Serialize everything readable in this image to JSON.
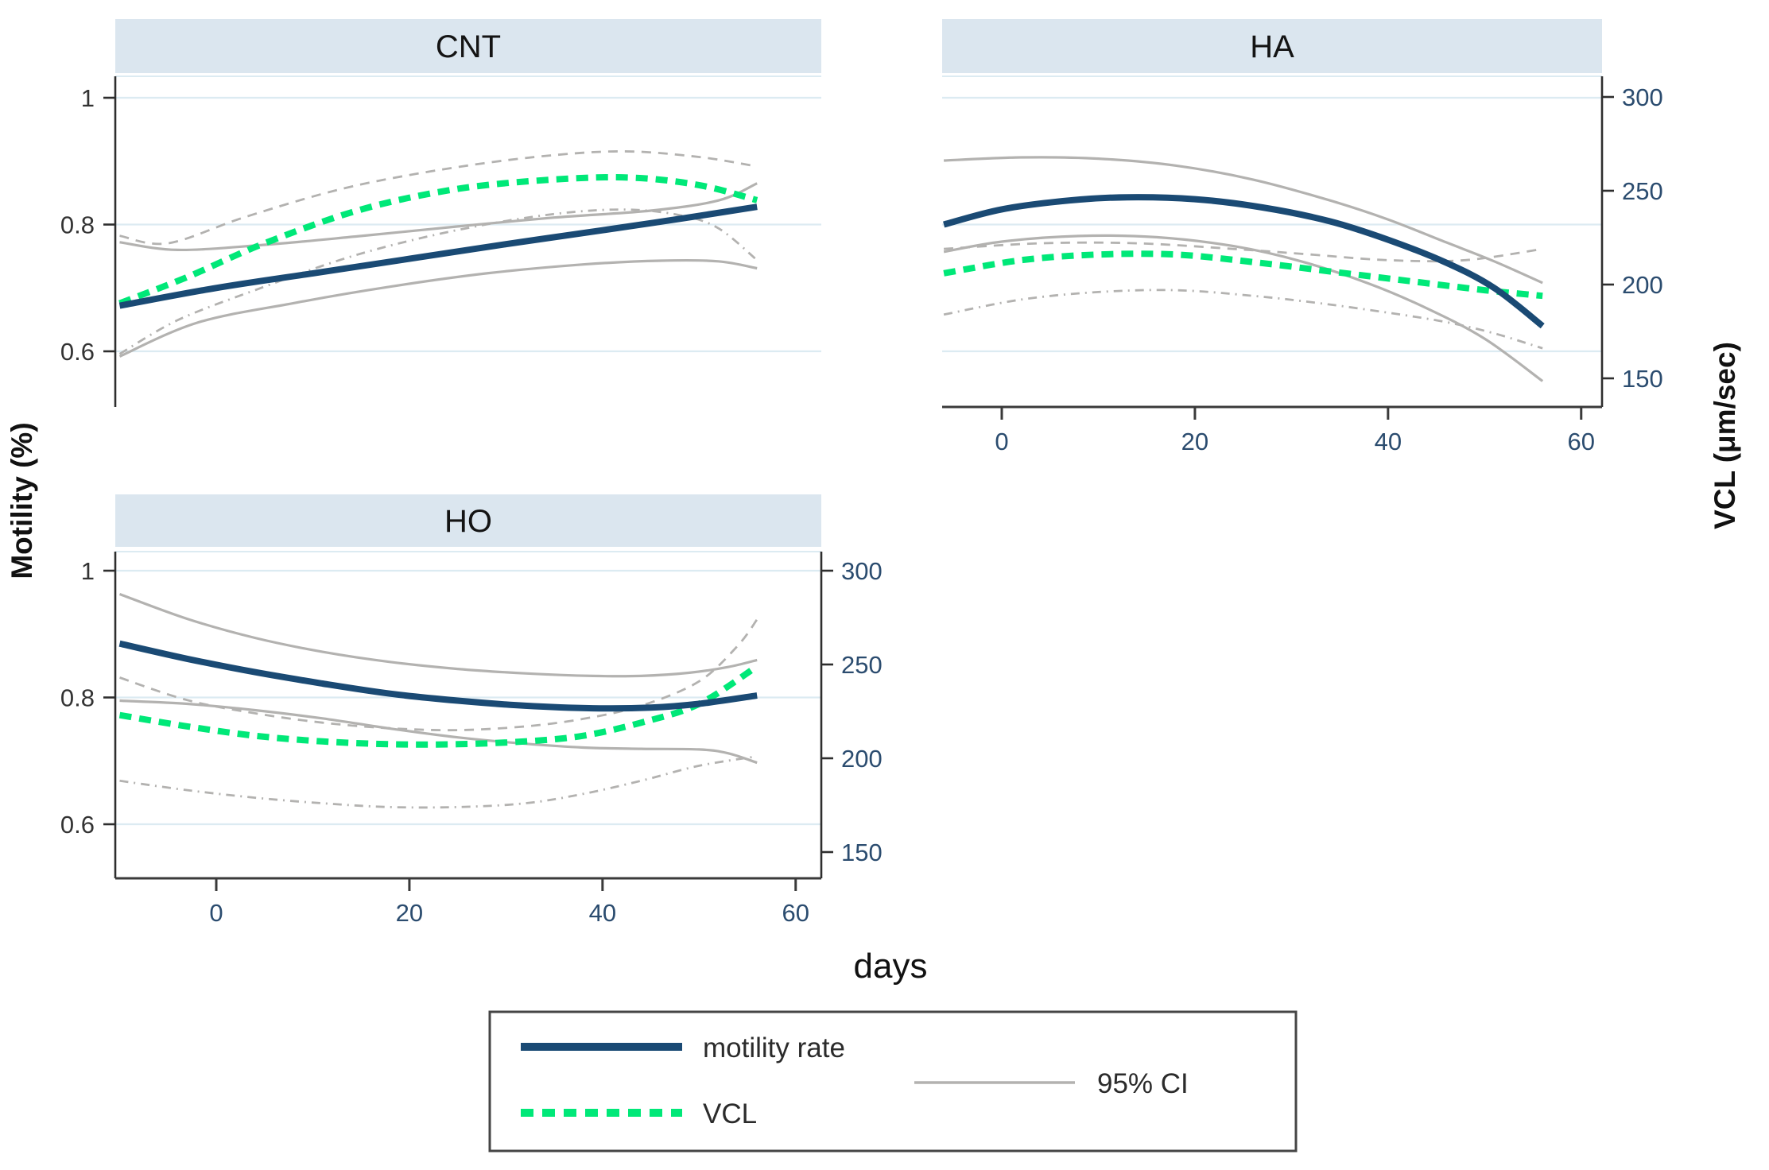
{
  "figure": {
    "left_axis_title": "Motility (%)",
    "right_axis_title": "VCL (μm/sec)",
    "x_axis_title": "days",
    "colors": {
      "motility_line": "#1a4a74",
      "vcl_line": "#00e878",
      "ci_line": "#b3b2b0",
      "grid_line": "#dcebf2",
      "header_bg": "#dbe6ef",
      "axis_line": "#2e2e2e",
      "x_axis_line": "#3a3a3a",
      "tick_label_xy": "#2b4c6f",
      "tick_label_left": "#333333",
      "title_text": "#141414",
      "legend_border": "#454545",
      "legend_text": "#2b2b2b"
    },
    "legend": {
      "items": [
        {
          "label": "motility rate",
          "style": "solid-navy"
        },
        {
          "label": "VCL",
          "style": "dotted-green"
        },
        {
          "label": "95% CI",
          "style": "solid-gray"
        }
      ]
    }
  },
  "chart_data": {
    "type": "line",
    "title": "",
    "xlabel": "days",
    "x_ticks": [
      0,
      20,
      40,
      60
    ],
    "x_range": [
      -10,
      62
    ],
    "motility_axis": {
      "label": "Motility (%)",
      "ticks": [
        1,
        0.8,
        0.6
      ],
      "range": [
        0.5,
        1.07
      ]
    },
    "vcl_axis": {
      "label": "VCL (μm/sec)",
      "ticks": [
        300,
        250,
        200,
        150
      ],
      "range": [
        135,
        312
      ]
    },
    "grid": "horizontal-light-blue",
    "legend_position": "bottom-center-box",
    "panels": [
      {
        "id": "CNT",
        "title": "CNT",
        "series": {
          "motility": [
            [
              -10,
              0.672
            ],
            [
              0,
              0.7
            ],
            [
              10,
              0.723
            ],
            [
              20,
              0.746
            ],
            [
              30,
              0.769
            ],
            [
              40,
              0.791
            ],
            [
              48,
              0.809
            ],
            [
              56,
              0.828
            ]
          ],
          "motility_ci_upper": [
            [
              -10,
              0.772
            ],
            [
              -4,
              0.76
            ],
            [
              5,
              0.768
            ],
            [
              15,
              0.782
            ],
            [
              25,
              0.797
            ],
            [
              35,
              0.811
            ],
            [
              45,
              0.822
            ],
            [
              52,
              0.838
            ],
            [
              56,
              0.865
            ]
          ],
          "motility_ci_lower": [
            [
              -10,
              0.592
            ],
            [
              -2,
              0.645
            ],
            [
              8,
              0.676
            ],
            [
              18,
              0.702
            ],
            [
              28,
              0.723
            ],
            [
              38,
              0.737
            ],
            [
              46,
              0.743
            ],
            [
              52,
              0.742
            ],
            [
              56,
              0.731
            ]
          ],
          "vcl": [
            [
              -10,
              190
            ],
            [
              -3,
              204
            ],
            [
              5,
              222
            ],
            [
              15,
              240
            ],
            [
              25,
              251
            ],
            [
              35,
              256
            ],
            [
              43,
              257
            ],
            [
              50,
              253
            ],
            [
              56,
              245
            ]
          ],
          "vcl_ci_upper": [
            [
              -10,
              226
            ],
            [
              -5,
              222
            ],
            [
              3,
              236
            ],
            [
              13,
              251
            ],
            [
              23,
              261
            ],
            [
              33,
              268
            ],
            [
              42,
              271
            ],
            [
              50,
              268
            ],
            [
              56,
              263
            ]
          ],
          "vcl_ci_lower": [
            [
              -10,
              163
            ],
            [
              -4,
              181
            ],
            [
              4,
              197
            ],
            [
              14,
              215
            ],
            [
              24,
              228
            ],
            [
              34,
              237
            ],
            [
              42,
              240
            ],
            [
              48,
              237
            ],
            [
              52,
              230
            ],
            [
              56,
              213
            ]
          ]
        }
      },
      {
        "id": "HA",
        "title": "HA",
        "series": {
          "motility": [
            [
              -6,
              0.8
            ],
            [
              0,
              0.824
            ],
            [
              7,
              0.838
            ],
            [
              13,
              0.843
            ],
            [
              20,
              0.84
            ],
            [
              27,
              0.827
            ],
            [
              34,
              0.805
            ],
            [
              40,
              0.776
            ],
            [
              46,
              0.74
            ],
            [
              51,
              0.7
            ],
            [
              56,
              0.64
            ]
          ],
          "motility_ci_upper": [
            [
              -6,
              0.901
            ],
            [
              2,
              0.906
            ],
            [
              10,
              0.904
            ],
            [
              18,
              0.893
            ],
            [
              26,
              0.871
            ],
            [
              34,
              0.838
            ],
            [
              40,
              0.808
            ],
            [
              46,
              0.772
            ],
            [
              51,
              0.742
            ],
            [
              56,
              0.708
            ]
          ],
          "motility_ci_lower": [
            [
              -6,
              0.757
            ],
            [
              0,
              0.773
            ],
            [
              8,
              0.782
            ],
            [
              16,
              0.78
            ],
            [
              24,
              0.766
            ],
            [
              31,
              0.742
            ],
            [
              38,
              0.707
            ],
            [
              44,
              0.668
            ],
            [
              50,
              0.62
            ],
            [
              56,
              0.553
            ]
          ],
          "vcl": [
            [
              -6,
              206
            ],
            [
              2,
              213
            ],
            [
              10,
              216
            ],
            [
              18,
              216
            ],
            [
              26,
              212
            ],
            [
              34,
              207
            ],
            [
              42,
              202
            ],
            [
              50,
              197
            ],
            [
              56,
              194
            ]
          ],
          "vcl_ci_upper": [
            [
              -6,
              219
            ],
            [
              4,
              222
            ],
            [
              14,
              222
            ],
            [
              24,
              219
            ],
            [
              32,
              216
            ],
            [
              40,
              213
            ],
            [
              48,
              213
            ],
            [
              56,
              219
            ]
          ],
          "vcl_ci_lower": [
            [
              -6,
              184
            ],
            [
              2,
              192
            ],
            [
              10,
              196
            ],
            [
              18,
              197
            ],
            [
              26,
              194
            ],
            [
              33,
              190
            ],
            [
              40,
              185
            ],
            [
              46,
              180
            ],
            [
              51,
              174
            ],
            [
              56,
              166
            ]
          ]
        }
      },
      {
        "id": "HO",
        "title": "HO",
        "series": {
          "motility": [
            [
              -10,
              0.885
            ],
            [
              -3,
              0.861
            ],
            [
              4,
              0.84
            ],
            [
              11,
              0.822
            ],
            [
              18,
              0.806
            ],
            [
              25,
              0.795
            ],
            [
              32,
              0.787
            ],
            [
              39,
              0.783
            ],
            [
              45,
              0.784
            ],
            [
              50,
              0.79
            ],
            [
              56,
              0.803
            ]
          ],
          "motility_ci_upper": [
            [
              -10,
              0.963
            ],
            [
              -3,
              0.924
            ],
            [
              4,
              0.894
            ],
            [
              11,
              0.872
            ],
            [
              18,
              0.856
            ],
            [
              25,
              0.845
            ],
            [
              32,
              0.838
            ],
            [
              39,
              0.834
            ],
            [
              44,
              0.834
            ],
            [
              49,
              0.839
            ],
            [
              53,
              0.848
            ],
            [
              56,
              0.859
            ]
          ],
          "motility_ci_lower": [
            [
              -10,
              0.795
            ],
            [
              -3,
              0.79
            ],
            [
              4,
              0.78
            ],
            [
              11,
              0.767
            ],
            [
              18,
              0.751
            ],
            [
              25,
              0.737
            ],
            [
              32,
              0.727
            ],
            [
              38,
              0.721
            ],
            [
              44,
              0.719
            ],
            [
              50,
              0.718
            ],
            [
              53,
              0.712
            ],
            [
              56,
              0.697
            ]
          ],
          "vcl": [
            [
              -10,
              223
            ],
            [
              -3,
              217
            ],
            [
              4,
              212
            ],
            [
              11,
              209
            ],
            [
              18,
              207.5
            ],
            [
              25,
              207.5
            ],
            [
              32,
              209
            ],
            [
              38,
              212
            ],
            [
              44,
              219
            ],
            [
              50,
              229
            ],
            [
              56,
              249
            ]
          ],
          "vcl_ci_upper": [
            [
              -10,
              243
            ],
            [
              -3,
              231
            ],
            [
              4,
              224
            ],
            [
              11,
              219
            ],
            [
              18,
              216
            ],
            [
              25,
              215
            ],
            [
              32,
              217
            ],
            [
              38,
              221
            ],
            [
              44,
              228
            ],
            [
              50,
              241
            ],
            [
              54,
              260
            ],
            [
              56,
              274
            ]
          ],
          "vcl_ci_lower": [
            [
              -10,
              188
            ],
            [
              -3,
              183
            ],
            [
              4,
              179
            ],
            [
              11,
              176
            ],
            [
              18,
              174
            ],
            [
              25,
              174
            ],
            [
              32,
              176
            ],
            [
              38,
              181
            ],
            [
              44,
              188
            ],
            [
              50,
              196
            ],
            [
              56,
              201
            ]
          ]
        }
      }
    ]
  }
}
